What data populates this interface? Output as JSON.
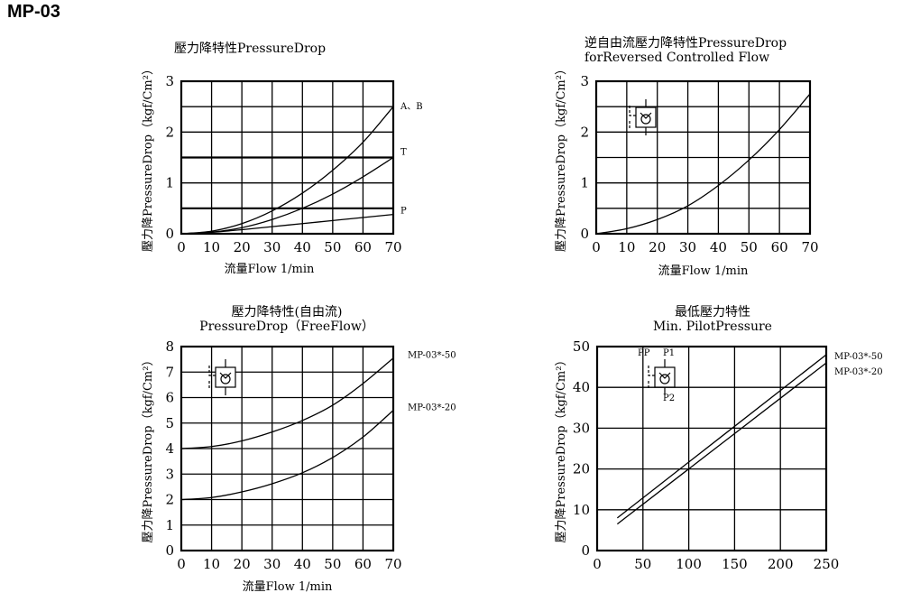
{
  "page_title": "MP-03",
  "chart_data": [
    {
      "type": "line",
      "title": "壓力降特性PressureDrop",
      "title2": "",
      "xlabel": "流量Flow 1/min",
      "ylabel": "壓力降PressureDrop（kgf/Cm²）",
      "xlim": [
        0,
        70
      ],
      "ylim": [
        0,
        3
      ],
      "xticks": [
        0,
        10,
        20,
        30,
        40,
        50,
        60,
        70
      ],
      "yticks": [
        0,
        1,
        2,
        3
      ],
      "grid": true,
      "hlines": [
        0.5,
        1.5
      ],
      "icon": "",
      "series": [
        {
          "name": "A、B",
          "x": [
            0,
            10,
            20,
            30,
            40,
            50,
            60,
            70
          ],
          "y": [
            0,
            0.05,
            0.2,
            0.45,
            0.8,
            1.25,
            1.8,
            2.5
          ]
        },
        {
          "name": "T",
          "x": [
            0,
            10,
            20,
            30,
            40,
            50,
            60,
            70
          ],
          "y": [
            0,
            0.03,
            0.12,
            0.28,
            0.5,
            0.78,
            1.12,
            1.5
          ]
        },
        {
          "name": "P",
          "x": [
            0,
            10,
            20,
            30,
            40,
            50,
            60,
            70
          ],
          "y": [
            0,
            0.03,
            0.08,
            0.14,
            0.2,
            0.26,
            0.32,
            0.38
          ]
        }
      ]
    },
    {
      "type": "line",
      "title": "逆自由流壓力降特性PressureDrop",
      "title2": "forReversed Controlled Flow",
      "xlabel": "流量Flow 1/min",
      "ylabel": "壓力降PressureDrop（kgf/Cm²）",
      "xlim": [
        0,
        70
      ],
      "ylim": [
        0,
        3
      ],
      "xticks": [
        0,
        10,
        20,
        30,
        40,
        50,
        60,
        70
      ],
      "yticks": [
        0,
        1,
        2,
        3
      ],
      "grid": true,
      "hlines": [],
      "icon": "check-valve-symbol",
      "series": [
        {
          "name": "",
          "x": [
            0,
            10,
            20,
            30,
            40,
            50,
            60,
            70
          ],
          "y": [
            0,
            0.1,
            0.28,
            0.55,
            0.95,
            1.45,
            2.05,
            2.75
          ]
        }
      ]
    },
    {
      "type": "line",
      "title": "壓力降特性(自由流)",
      "title2": "PressureDrop（FreeFlow）",
      "xlabel": "流量Flow 1/min",
      "ylabel": "壓力降PressureDrop（kgf/Cm²）",
      "xlim": [
        0,
        70
      ],
      "ylim": [
        0,
        8
      ],
      "xticks": [
        0,
        10,
        20,
        30,
        40,
        50,
        60,
        70
      ],
      "yticks": [
        0,
        1,
        2,
        3,
        4,
        5,
        6,
        7,
        8
      ],
      "grid": true,
      "hlines": [],
      "icon": "check-valve-symbol",
      "series": [
        {
          "name": "MP-03*-50",
          "x": [
            0,
            10,
            20,
            30,
            40,
            50,
            60,
            70
          ],
          "y": [
            4.0,
            4.08,
            4.3,
            4.65,
            5.1,
            5.7,
            6.55,
            7.55
          ]
        },
        {
          "name": "MP-03*-20",
          "x": [
            0,
            10,
            20,
            30,
            40,
            50,
            60,
            70
          ],
          "y": [
            2.0,
            2.08,
            2.3,
            2.62,
            3.05,
            3.65,
            4.45,
            5.5
          ]
        }
      ]
    },
    {
      "type": "line",
      "title": "最低壓力特性",
      "title2": "Min. PilotPressure",
      "xlabel": "",
      "ylabel": "壓力降PressureDrop（kgf/Cm²）",
      "xlim": [
        0,
        250
      ],
      "ylim": [
        0,
        50
      ],
      "xticks": [
        0,
        50,
        100,
        150,
        200,
        250
      ],
      "yticks": [
        0,
        10,
        20,
        30,
        40,
        50
      ],
      "grid": true,
      "hlines": [],
      "icon": "pilot-check-valve-symbol",
      "icon_labels": [
        "PP",
        "P1",
        "P2"
      ],
      "series": [
        {
          "name": "MP-03*-50",
          "x": [
            22,
            250
          ],
          "y": [
            8,
            48
          ]
        },
        {
          "name": "MP-03*-20",
          "x": [
            22,
            250
          ],
          "y": [
            6.5,
            46
          ]
        }
      ]
    }
  ]
}
